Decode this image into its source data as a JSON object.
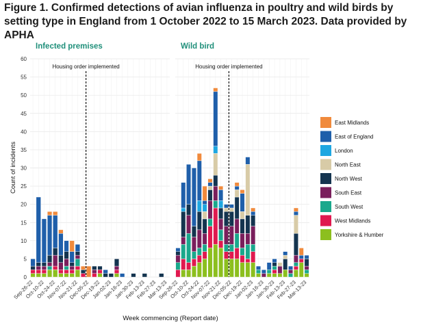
{
  "figure": {
    "title": "Figure 1. Confirmed detections of avian influenza in poultry and wild birds by setting type in England from 1 October 2022 to 15 March 2023. Data provided by APHA"
  },
  "chart_data": {
    "type": "bar",
    "stacked": true,
    "ylabel": "Count of incidents",
    "xlabel": "Week commencing (Report date)",
    "ylim": [
      0,
      60
    ],
    "yticks": [
      0,
      5,
      10,
      15,
      20,
      25,
      30,
      35,
      40,
      45,
      50,
      55,
      60
    ],
    "grid": true,
    "legend_position": "right",
    "annotation": "Housing order implemented",
    "housing_order_week_index": 9.5,
    "categories": [
      "Sep-26-22",
      "Oct-03-22",
      "Oct-10-22",
      "Oct-17-22",
      "Oct-24-22",
      "Oct-31-22",
      "Nov-07-22",
      "Nov-14-22",
      "Nov-21-22",
      "Nov-28-22",
      "Dec-05-22",
      "Dec-12-22",
      "Dec-19-22",
      "Dec-26-22",
      "Jan-02-23",
      "Jan-09-23",
      "Jan-16-23",
      "Jan-23-23",
      "Jan-30-23",
      "Feb-06-23",
      "Feb-13-23",
      "Feb-20-23",
      "Feb-27-23",
      "Mar-06-23",
      "Mar-13-23"
    ],
    "x_tick_labels": [
      "Sep-26-22",
      "Oct-10-22",
      "Oct-24-22",
      "Nov-07-22",
      "Nov-21-22",
      "Dec-05-22",
      "Dec-19-22",
      "Jan-02-23",
      "Jan-16-23",
      "Jan-30-23",
      "Feb-13-23",
      "Feb-27-23",
      "Mar-13-23"
    ],
    "colors": {
      "East Midlands": "#f08a3c",
      "East of England": "#1f5faa",
      "London": "#1ea7e1",
      "North East": "#d8cba7",
      "North West": "#14344f",
      "South East": "#7a1f5c",
      "South West": "#1aa88c",
      "West Midlands": "#e0194f",
      "Yorkshire & Humber": "#8cbf1e"
    },
    "stack_order": [
      "Yorkshire & Humber",
      "West Midlands",
      "South West",
      "South East",
      "North West",
      "North East",
      "London",
      "East of England",
      "East Midlands"
    ],
    "panels": [
      {
        "title": "Infected premises",
        "series": [
          {
            "name": "East Midlands",
            "values": [
              0,
              0,
              0,
              1,
              1,
              1,
              0,
              3,
              0,
              1,
              3,
              0,
              0,
              0,
              0,
              0,
              0,
              0,
              0,
              0,
              0,
              0,
              0,
              0,
              0
            ]
          },
          {
            "name": "East of England",
            "values": [
              2,
              18,
              12,
              11,
              9,
              6,
              3,
              3,
              2,
              0,
              0,
              0,
              0,
              1,
              0,
              0,
              1,
              0,
              0,
              0,
              0,
              0,
              0,
              0,
              0
            ]
          },
          {
            "name": "London",
            "values": [
              0,
              0,
              0,
              0,
              0,
              0,
              0,
              0,
              0,
              0,
              0,
              0,
              0,
              0,
              0,
              0,
              0,
              0,
              0,
              0,
              0,
              0,
              0,
              0,
              0
            ]
          },
          {
            "name": "North East",
            "values": [
              0,
              0,
              0,
              0,
              0,
              0,
              0,
              0,
              0,
              0,
              0,
              0,
              0,
              0,
              0,
              0,
              0,
              0,
              0,
              0,
              0,
              0,
              0,
              0,
              0
            ]
          },
          {
            "name": "North West",
            "values": [
              1,
              1,
              1,
              2,
              2,
              2,
              2,
              1,
              1,
              1,
              0,
              1,
              1,
              1,
              1,
              2,
              0,
              0,
              1,
              0,
              1,
              0,
              0,
              1,
              0
            ]
          },
          {
            "name": "South East",
            "values": [
              0,
              1,
              1,
              1,
              3,
              2,
              2,
              1,
              1,
              0,
              0,
              1,
              0,
              0,
              0,
              1,
              0,
              0,
              0,
              0,
              0,
              0,
              0,
              0,
              0
            ]
          },
          {
            "name": "South West",
            "values": [
              0,
              0,
              0,
              1,
              0,
              0,
              1,
              0,
              2,
              0,
              0,
              0,
              0,
              0,
              0,
              0,
              0,
              0,
              0,
              0,
              0,
              0,
              0,
              0,
              0
            ]
          },
          {
            "name": "West Midlands",
            "values": [
              1,
              1,
              1,
              0,
              1,
              1,
              1,
              1,
              1,
              1,
              0,
              1,
              1,
              0,
              0,
              1,
              0,
              0,
              0,
              0,
              0,
              0,
              0,
              0,
              0
            ]
          },
          {
            "name": "Yorkshire & Humber",
            "values": [
              1,
              1,
              1,
              2,
              2,
              1,
              1,
              1,
              2,
              0,
              0,
              0,
              1,
              0,
              0,
              1,
              0,
              0,
              0,
              0,
              0,
              0,
              0,
              0,
              0
            ]
          }
        ]
      },
      {
        "title": "Wild bird",
        "series": [
          {
            "name": "East Midlands",
            "values": [
              0,
              0,
              0,
              0,
              2,
              4,
              1,
              1,
              1,
              0,
              0,
              1,
              1,
              0,
              1,
              0,
              0,
              0,
              0,
              0,
              0,
              0,
              1,
              2,
              0
            ]
          },
          {
            "name": "East of England",
            "values": [
              1,
              7,
              11,
              16,
              11,
              1,
              1,
              15,
              3,
              1,
              1,
              1,
              5,
              2,
              1,
              1,
              1,
              2,
              1,
              0,
              1,
              1,
              1,
              1,
              1
            ]
          },
          {
            "name": "London",
            "values": [
              0,
              1,
              0,
              0,
              3,
              2,
              0,
              2,
              2,
              0,
              0,
              0,
              0,
              0,
              0,
              0,
              0,
              0,
              0,
              0,
              0,
              0,
              0,
              0,
              0
            ]
          },
          {
            "name": "North East",
            "values": [
              0,
              0,
              0,
              0,
              0,
              2,
              1,
              6,
              0,
              1,
              1,
              2,
              2,
              14,
              0,
              0,
              0,
              0,
              0,
              1,
              1,
              0,
              5,
              0,
              0
            ]
          },
          {
            "name": "North West",
            "values": [
              1,
              7,
              3,
              3,
              5,
              4,
              3,
              3,
              3,
              4,
              4,
              6,
              4,
              5,
              3,
              0,
              0,
              0,
              1,
              0,
              3,
              0,
              6,
              0,
              2
            ]
          },
          {
            "name": "South East",
            "values": [
              2,
              2,
              5,
              4,
              5,
              3,
              5,
              4,
              3,
              5,
              5,
              4,
              4,
              3,
              5,
              0,
              1,
              0,
              0,
              2,
              0,
              1,
              2,
              0,
              1
            ]
          },
          {
            "name": "South West",
            "values": [
              2,
              4,
              8,
              2,
              2,
              2,
              2,
              2,
              3,
              2,
              2,
              4,
              2,
              4,
              2,
              1,
              0,
              1,
              1,
              0,
              0,
              1,
              1,
              0,
              1
            ]
          },
          {
            "name": "West Midlands",
            "values": [
              2,
              3,
              2,
              2,
              2,
              2,
              6,
              10,
              2,
              2,
              2,
              3,
              2,
              1,
              3,
              0,
              0,
              0,
              1,
              0,
              0,
              0,
              1,
              1,
              0
            ]
          },
          {
            "name": "Yorkshire & Humber",
            "values": [
              0,
              2,
              2,
              3,
              4,
              5,
              8,
              9,
              8,
              5,
              5,
              5,
              4,
              4,
              4,
              1,
              0,
              1,
              1,
              1,
              2,
              0,
              2,
              4,
              1
            ]
          }
        ]
      }
    ]
  }
}
